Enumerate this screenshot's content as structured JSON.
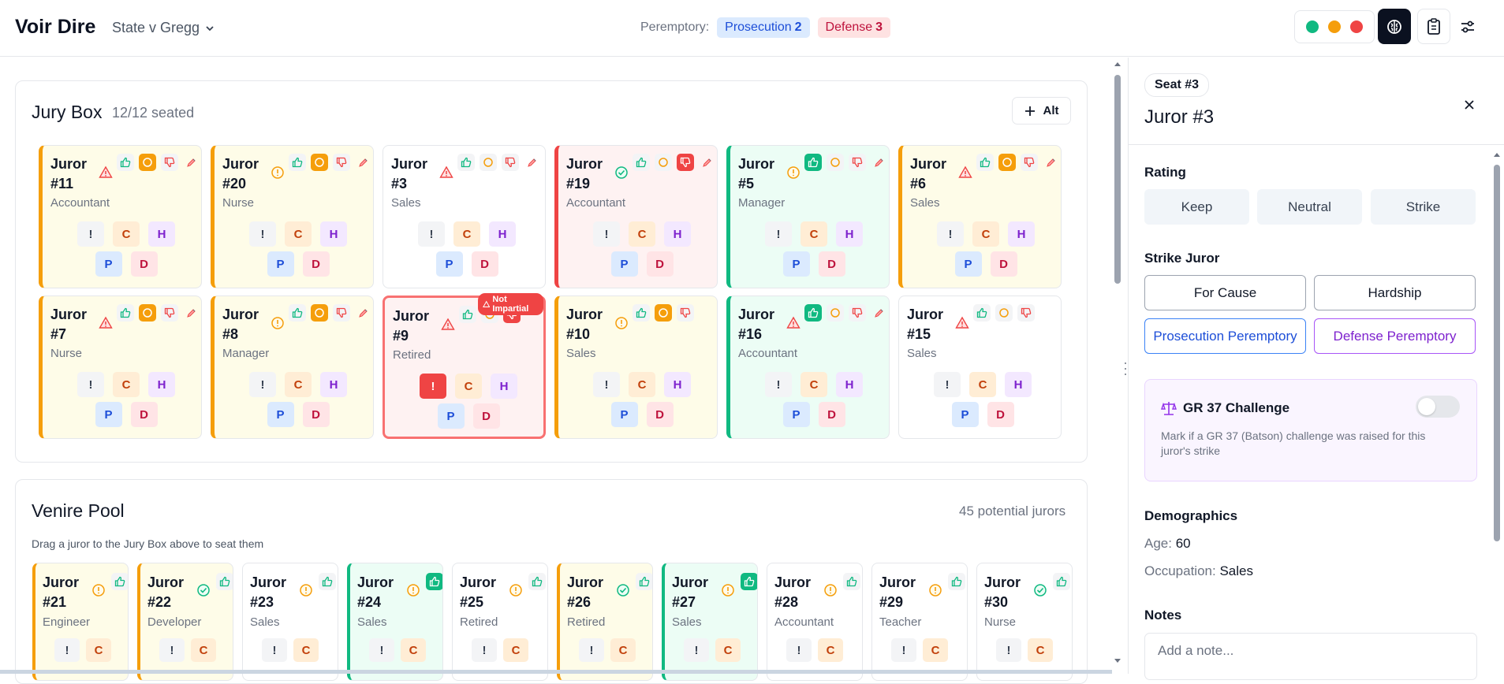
{
  "header": {
    "app_title": "Voir Dire",
    "case_name": "State v Gregg",
    "peremptory_label": "Peremptory:",
    "prosecution": {
      "label": "Prosecution",
      "count": "2"
    },
    "defense": {
      "label": "Defense",
      "count": "3"
    },
    "status_colors": [
      "#10b981",
      "#f59e0b",
      "#ef4444"
    ],
    "icons": [
      "brain-icon",
      "clipboard-icon",
      "sliders-icon"
    ]
  },
  "jury_box": {
    "title": "Jury Box",
    "count": "12/12 seated",
    "alt_button": "Alt",
    "badge_labels": [
      "!",
      "C",
      "H",
      "P",
      "D"
    ],
    "not_impartial_tag": "Not Impartial",
    "jurors": [
      {
        "name": "Juror",
        "num": "#11",
        "occupation": "Accountant",
        "rating": "neutral",
        "status": "warning"
      },
      {
        "name": "Juror",
        "num": "#20",
        "occupation": "Nurse",
        "rating": "neutral",
        "status": "info"
      },
      {
        "name": "Juror",
        "num": "#3",
        "occupation": "Sales",
        "rating": "none",
        "status": "warning"
      },
      {
        "name": "Juror",
        "num": "#19",
        "occupation": "Accountant",
        "rating": "strike",
        "status": "ok"
      },
      {
        "name": "Juror",
        "num": "#5",
        "occupation": "Manager",
        "rating": "keep",
        "status": "info"
      },
      {
        "name": "Juror",
        "num": "#6",
        "occupation": "Sales",
        "rating": "neutral",
        "status": "warning"
      },
      {
        "name": "Juror",
        "num": "#7",
        "occupation": "Nurse",
        "rating": "neutral",
        "status": "warning"
      },
      {
        "name": "Juror",
        "num": "#8",
        "occupation": "Manager",
        "rating": "neutral",
        "status": "info"
      },
      {
        "name": "Juror",
        "num": "#9",
        "occupation": "Retired",
        "rating": "strike",
        "status": "warning"
      },
      {
        "name": "Juror",
        "num": "#10",
        "occupation": "Sales",
        "rating": "neutral",
        "status": "info"
      },
      {
        "name": "Juror",
        "num": "#16",
        "occupation": "Accountant",
        "rating": "keep",
        "status": "warning"
      },
      {
        "name": "Juror",
        "num": "#15",
        "occupation": "Sales",
        "rating": "none",
        "status": "warning"
      }
    ]
  },
  "venire": {
    "title": "Venire Pool",
    "count": "45 potential jurors",
    "hint": "Drag a juror to the Jury Box above to seat them",
    "jurors": [
      {
        "name": "Juror",
        "num": "#21",
        "occupation": "Engineer",
        "rating": "neutral",
        "status": "info"
      },
      {
        "name": "Juror",
        "num": "#22",
        "occupation": "Developer",
        "rating": "neutral",
        "status": "ok"
      },
      {
        "name": "Juror",
        "num": "#23",
        "occupation": "Sales",
        "rating": "none",
        "status": "info"
      },
      {
        "name": "Juror",
        "num": "#24",
        "occupation": "Sales",
        "rating": "keep",
        "status": "info"
      },
      {
        "name": "Juror",
        "num": "#25",
        "occupation": "Retired",
        "rating": "none",
        "status": "info"
      },
      {
        "name": "Juror",
        "num": "#26",
        "occupation": "Retired",
        "rating": "neutral",
        "status": "ok"
      },
      {
        "name": "Juror",
        "num": "#27",
        "occupation": "Sales",
        "rating": "keep",
        "status": "info"
      },
      {
        "name": "Juror",
        "num": "#28",
        "occupation": "Accountant",
        "rating": "none",
        "status": "info"
      },
      {
        "name": "Juror",
        "num": "#29",
        "occupation": "Teacher",
        "rating": "none",
        "status": "info"
      },
      {
        "name": "Juror",
        "num": "#30",
        "occupation": "Nurse",
        "rating": "none",
        "status": "ok"
      }
    ]
  },
  "panel": {
    "seat": "Seat #3",
    "title": "Juror #3",
    "rating_heading": "Rating",
    "rating_keep": "Keep",
    "rating_neutral": "Neutral",
    "rating_strike": "Strike",
    "strike_heading": "Strike Juror",
    "for_cause": "For Cause",
    "hardship": "Hardship",
    "prosecution_peremptory": "Prosecution Peremptory",
    "defense_peremptory": "Defense Peremptory",
    "gr37_title": "GR 37 Challenge",
    "gr37_desc": "Mark if a GR 37 (Batson) challenge was raised for this juror's strike",
    "demographics_heading": "Demographics",
    "age_label": "Age:",
    "age_value": "60",
    "occupation_label": "Occupation:",
    "occupation_value": "Sales",
    "notes_heading": "Notes",
    "notes_placeholder": "Add a note..."
  }
}
